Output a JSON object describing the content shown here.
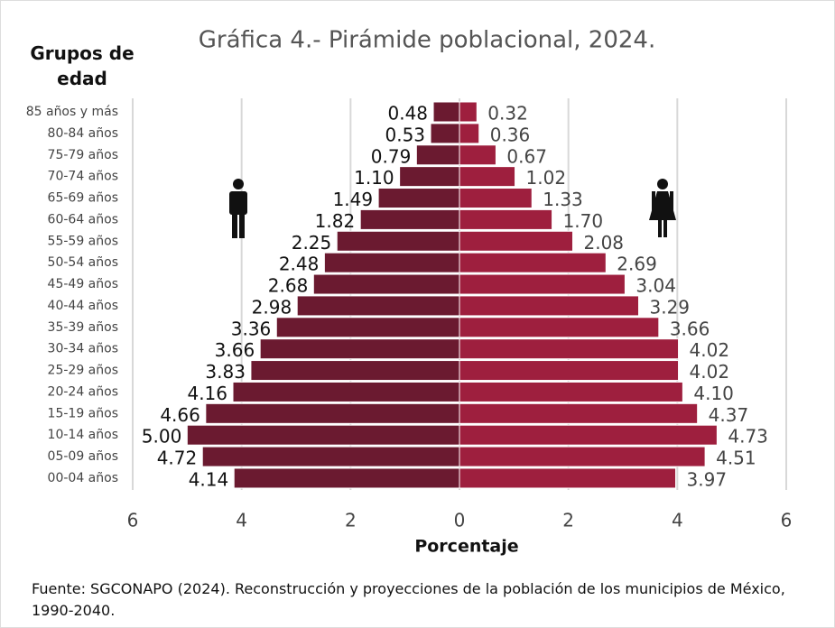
{
  "chart_data": {
    "type": "pyramid",
    "title": "Gráfica 4.- Pirámide poblacional, 2024.",
    "y_label": "Grupos de edad",
    "x_label": "Porcentaje",
    "source": "Fuente:  SGCONAPO (2024). Reconstrucción y proyecciones de la población de los municipios de México, 1990-2040.",
    "categories": [
      "85 años y más",
      "80-84 años",
      "75-79 años",
      "70-74 años",
      "65-69 años",
      "60-64 años",
      "55-59 años",
      "50-54 años",
      "45-49 años",
      "40-44 años",
      "35-39 años",
      "30-34 años",
      "25-29 años",
      "20-24 años",
      "15-19 años",
      "10-14 años",
      "05-09 años",
      "00-04 años"
    ],
    "series": [
      {
        "side": "left",
        "color": "#6b1a30",
        "values": [
          0.48,
          0.53,
          0.79,
          1.1,
          1.49,
          1.82,
          2.25,
          2.48,
          2.68,
          2.98,
          3.36,
          3.66,
          3.83,
          4.16,
          4.66,
          5.0,
          4.72,
          4.14
        ],
        "value_labels": [
          "0.48",
          "0.53",
          "0.79",
          "1.10",
          "1.49",
          "1.82",
          "2.25",
          "2.48",
          "2.68",
          "2.98",
          "3.36",
          "3.66",
          "3.83",
          "4.16",
          "4.66",
          "5.00",
          "4.72",
          "4.14"
        ]
      },
      {
        "side": "right",
        "color": "#9e1f3e",
        "values": [
          0.32,
          0.36,
          0.67,
          1.02,
          1.33,
          1.7,
          2.08,
          2.69,
          3.04,
          3.29,
          3.66,
          4.02,
          4.02,
          4.1,
          4.37,
          4.73,
          4.51,
          3.97
        ],
        "value_labels": [
          "0.32",
          "0.36",
          "0.67",
          "1.02",
          "1.33",
          "1.70",
          "2.08",
          "2.69",
          "3.04",
          "3.29",
          "3.66",
          "4.02",
          "4.02",
          "4.10",
          "4.37",
          "4.73",
          "4.51",
          "3.97"
        ]
      }
    ],
    "xlim": [
      -6,
      6
    ],
    "xticks": [
      {
        "value": -6,
        "label": "6"
      },
      {
        "value": -4,
        "label": "4"
      },
      {
        "value": -2,
        "label": "2"
      },
      0,
      2,
      4,
      6
    ],
    "grid": true
  }
}
